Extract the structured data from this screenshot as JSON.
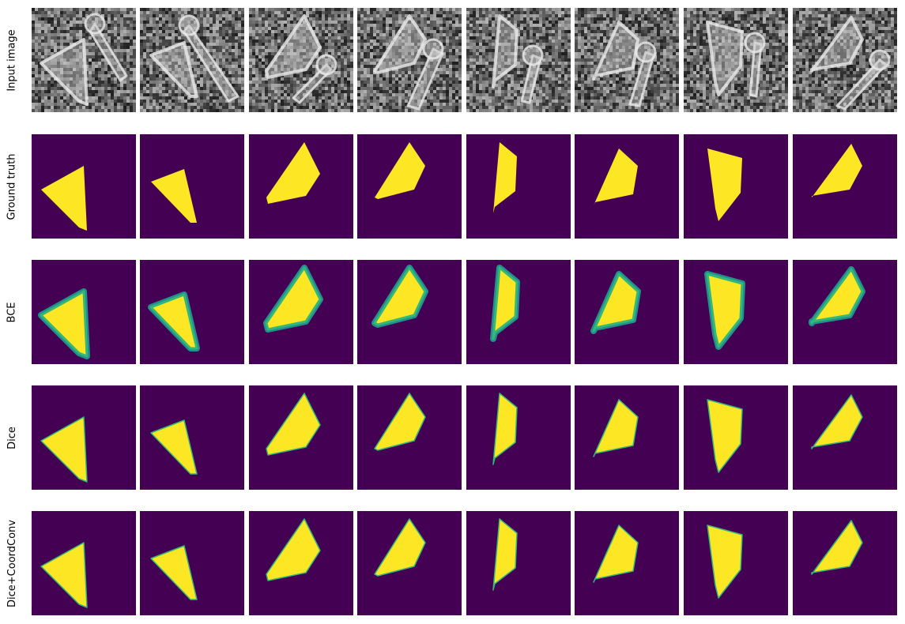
{
  "figure": {
    "rows": [
      {
        "id": "input",
        "label": "Input image",
        "kind": "noisy"
      },
      {
        "id": "gt",
        "label": "Ground truth",
        "kind": "mask"
      },
      {
        "id": "bce",
        "label": "BCE",
        "kind": "soft"
      },
      {
        "id": "dice",
        "label": "Dice",
        "kind": "mask-pixel"
      },
      {
        "id": "dice_coord",
        "label": "Dice+CoordConv",
        "kind": "mask-pixel"
      }
    ],
    "columns": 8
  },
  "colors": {
    "background": "#440154",
    "foreground": "#fde725",
    "edge": "#35b779",
    "edge_dark": "#21918c",
    "noise_dark": "#2a2a2a",
    "noise_light": "#d8d8d8"
  }
}
